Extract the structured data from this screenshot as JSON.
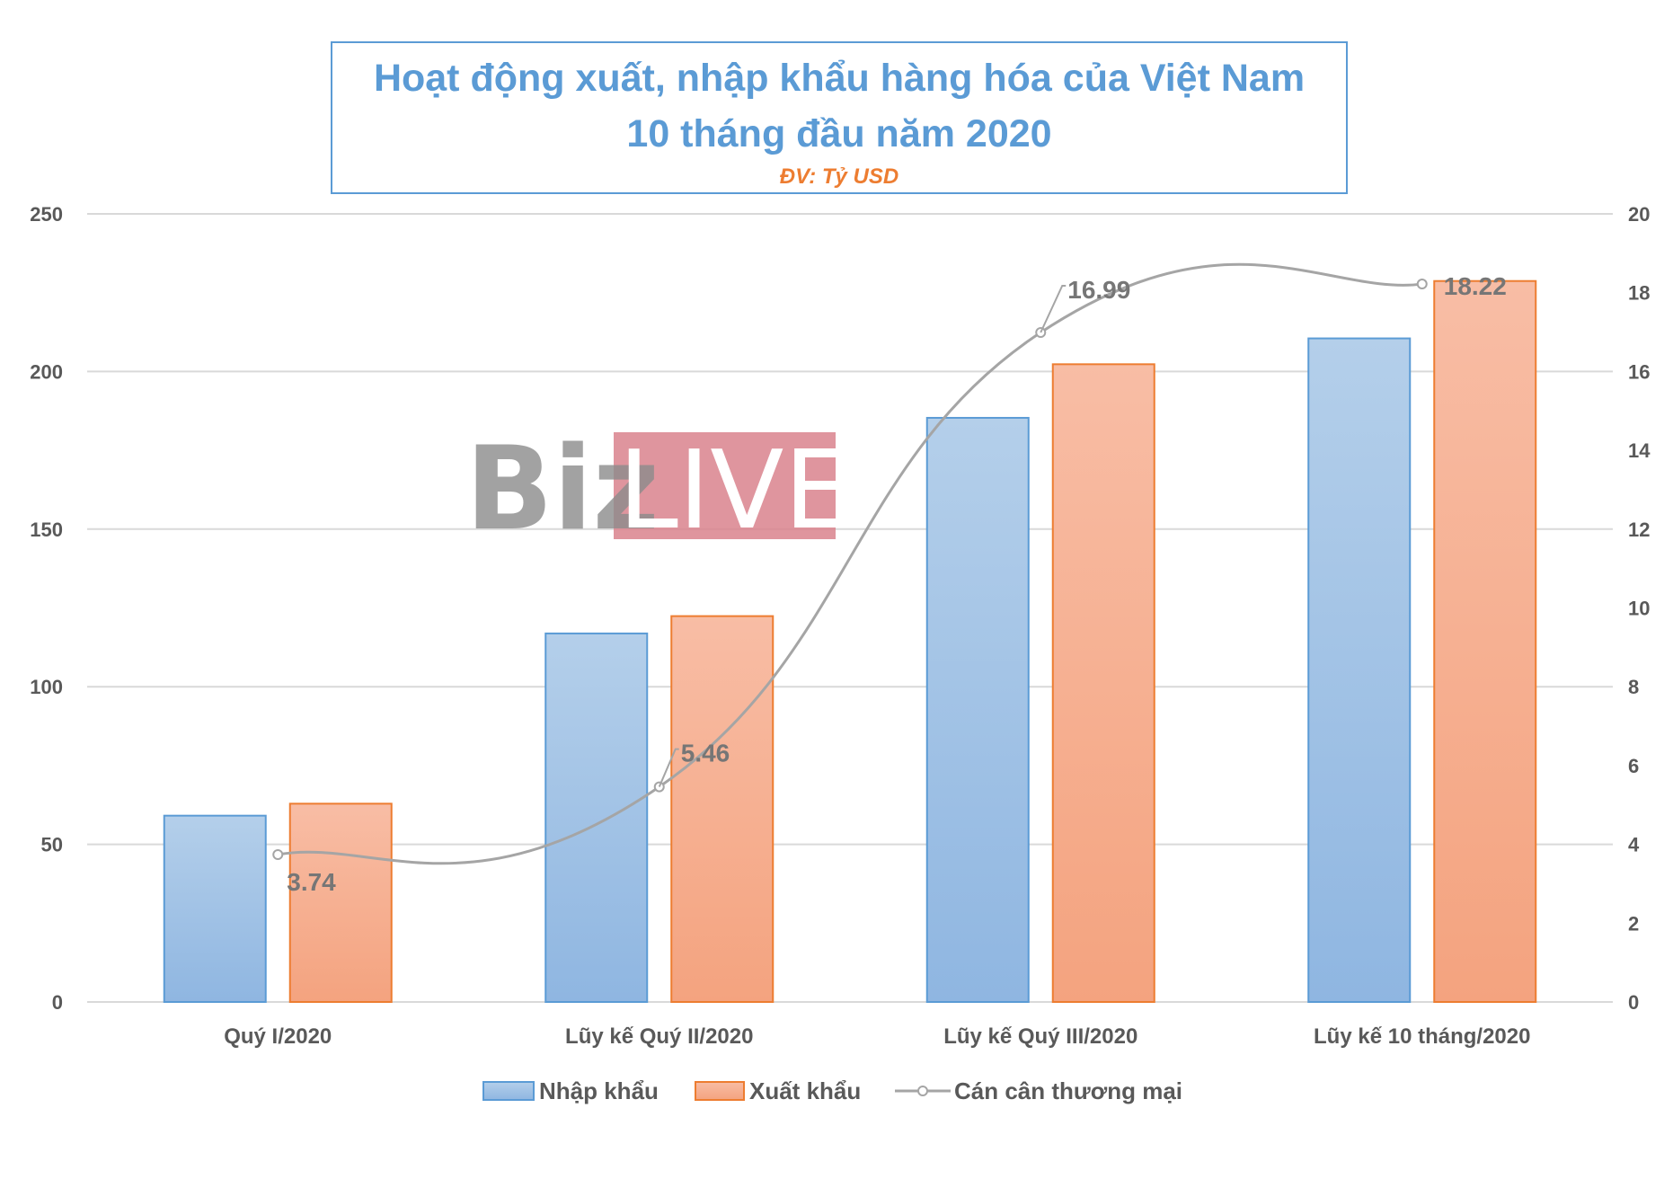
{
  "title": {
    "line1": "Hoạt động xuất, nhập khẩu hàng hóa của Việt Nam",
    "line2": "10 tháng đầu năm 2020",
    "unit": "ĐV: Tỷ USD"
  },
  "watermark": {
    "biz": "Biz",
    "live": "LIVE"
  },
  "colors": {
    "import": "#9dc3e6",
    "import_border": "#5b9bd5",
    "export": "#f7b196",
    "export_border": "#ed7d31",
    "balance": "#a5a5a5",
    "title": "#5b9bd5",
    "unit": "#ed7d31",
    "watermark_box": "#d9828d"
  },
  "chart_data": {
    "type": "bar",
    "title": "Hoạt động xuất, nhập khẩu hàng hóa của Việt Nam 10 tháng đầu năm 2020",
    "subtitle": "ĐV: Tỷ USD",
    "categories": [
      "Quý I/2020",
      "Lũy kế Quý II/2020",
      "Lũy kế Quý III/2020",
      "Lũy kế 10 tháng/2020"
    ],
    "series": [
      {
        "name": "Nhập khẩu",
        "type": "bar",
        "axis": "left",
        "values": [
          59.1,
          116.9,
          185.3,
          210.5
        ]
      },
      {
        "name": "Xuất khẩu",
        "type": "bar",
        "axis": "left",
        "values": [
          62.9,
          122.4,
          202.3,
          228.7
        ]
      },
      {
        "name": "Cán cân thương mại",
        "type": "line",
        "axis": "right",
        "values": [
          3.74,
          5.46,
          16.99,
          18.22
        ],
        "labels": [
          "3.74",
          "5.46",
          "16.99",
          "18.22"
        ]
      }
    ],
    "ylim_left": [
      0,
      250
    ],
    "ylim_right": [
      0,
      20
    ],
    "yticks_left": [
      "0",
      "50",
      "100",
      "150",
      "200",
      "250"
    ],
    "yticks_right": [
      "0",
      "2",
      "4",
      "6",
      "8",
      "10",
      "12",
      "14",
      "16",
      "18",
      "20"
    ],
    "grid": true,
    "legend_position": "bottom"
  }
}
